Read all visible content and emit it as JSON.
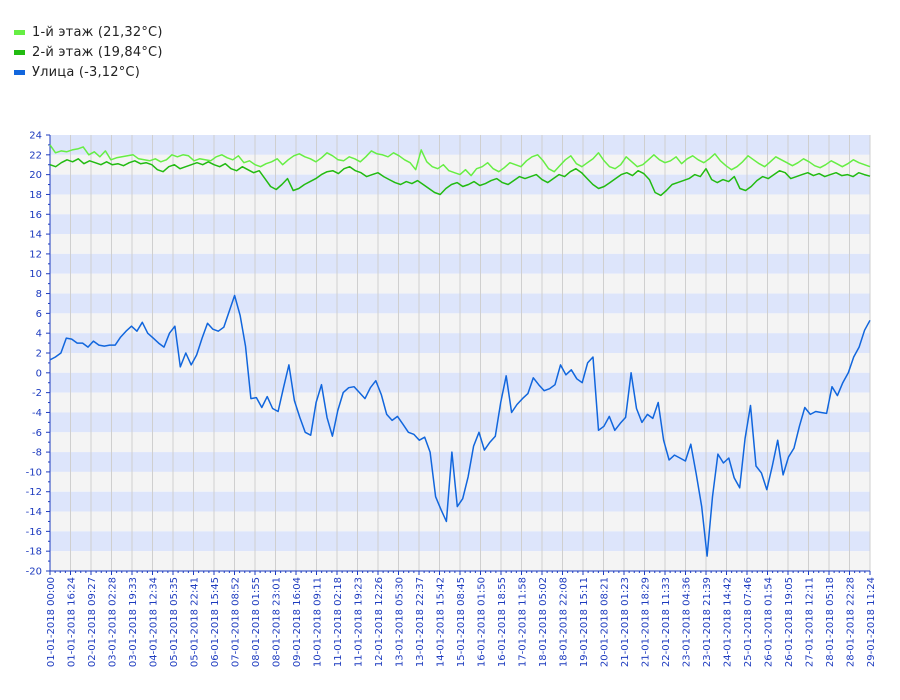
{
  "legend": [
    {
      "label": "1-й этаж (21,32°C)",
      "color": "#66ee44"
    },
    {
      "label": "2-й этаж (19,84°C)",
      "color": "#22bb11"
    },
    {
      "label": "Улица (-3,12°C)",
      "color": "#1166dd"
    }
  ],
  "chart_data": {
    "type": "line",
    "title": "",
    "xlabel": "",
    "ylabel": "",
    "ylim": [
      -20,
      24
    ],
    "yticks": [
      24,
      22,
      20,
      18,
      16,
      14,
      12,
      10,
      8,
      6,
      4,
      2,
      0,
      -2,
      -4,
      -6,
      -8,
      -10,
      -12,
      -14,
      -16,
      -18,
      -20
    ],
    "x_tick_labels": [
      "01-01-2018 00:00",
      "01-01-2018 16:24",
      "02-01-2018 09:27",
      "03-01-2018 02:28",
      "03-01-2018 19:33",
      "04-01-2018 12:34",
      "05-01-2018 05:35",
      "05-01-2018 22:41",
      "06-01-2018 15:45",
      "07-01-2018 08:52",
      "08-01-2018 01:55",
      "08-01-2018 23:01",
      "09-01-2018 16:04",
      "10-01-2018 09:11",
      "11-01-2018 02:18",
      "11-01-2018 19:23",
      "12-01-2018 12:26",
      "13-01-2018 05:30",
      "13-01-2018 22:37",
      "14-01-2018 15:42",
      "15-01-2018 08:45",
      "16-01-2018 01:50",
      "16-01-2018 18:55",
      "17-01-2018 11:58",
      "18-01-2018 05:02",
      "18-01-2018 22:08",
      "19-01-2018 15:11",
      "20-01-2018 08:21",
      "21-01-2018 01:23",
      "21-01-2018 18:29",
      "22-01-2018 11:33",
      "23-01-2018 04:36",
      "23-01-2018 21:39",
      "24-01-2018 14:42",
      "25-01-2018 07:46",
      "26-01-2018 01:54",
      "26-01-2018 19:05",
      "27-01-2018 12:11",
      "28-01-2018 05:18",
      "28-01-2018 22:28",
      "29-01-2018 11:24"
    ],
    "grid": true,
    "series": [
      {
        "name": "1-й этаж (21,32°C)",
        "color": "#66ee44",
        "values": [
          23.0,
          22.2,
          22.4,
          22.3,
          22.5,
          22.6,
          22.8,
          22.0,
          22.3,
          21.8,
          22.4,
          21.5,
          21.7,
          21.8,
          21.9,
          22.0,
          21.6,
          21.5,
          21.4,
          21.6,
          21.3,
          21.5,
          22.0,
          21.8,
          22.0,
          21.9,
          21.4,
          21.6,
          21.5,
          21.4,
          21.8,
          22.0,
          21.7,
          21.5,
          21.9,
          21.2,
          21.4,
          21.0,
          20.8,
          21.1,
          21.3,
          21.6,
          21.0,
          21.5,
          21.9,
          22.1,
          21.8,
          21.6,
          21.3,
          21.7,
          22.2,
          21.9,
          21.5,
          21.4,
          21.8,
          21.6,
          21.3,
          21.8,
          22.4,
          22.1,
          22.0,
          21.8,
          22.2,
          21.9,
          21.5,
          21.2,
          20.5,
          22.5,
          21.3,
          20.8,
          20.6,
          21.0,
          20.4,
          20.2,
          20.0,
          20.5,
          19.9,
          20.6,
          20.8,
          21.2,
          20.6,
          20.3,
          20.7,
          21.2,
          21.0,
          20.8,
          21.4,
          21.8,
          22.0,
          21.4,
          20.6,
          20.3,
          20.9,
          21.5,
          21.9,
          21.1,
          20.8,
          21.2,
          21.6,
          22.2,
          21.4,
          20.8,
          20.6,
          21.0,
          21.8,
          21.3,
          20.8,
          21.0,
          21.5,
          22.0,
          21.5,
          21.2,
          21.4,
          21.8,
          21.1,
          21.6,
          21.9,
          21.5,
          21.2,
          21.6,
          22.1,
          21.4,
          20.9,
          20.5,
          20.8,
          21.3,
          21.9,
          21.5,
          21.1,
          20.8,
          21.3,
          21.8,
          21.5,
          21.2,
          20.9,
          21.2,
          21.6,
          21.3,
          20.9,
          20.7,
          21.0,
          21.4,
          21.1,
          20.8,
          21.1,
          21.5,
          21.2,
          21.0,
          20.8
        ]
      },
      {
        "name": "2-й этаж (19,84°C)",
        "color": "#22bb11",
        "values": [
          21.0,
          20.8,
          21.2,
          21.5,
          21.3,
          21.6,
          21.1,
          21.4,
          21.2,
          21.0,
          21.3,
          21.0,
          21.1,
          20.9,
          21.2,
          21.4,
          21.1,
          21.2,
          21.0,
          20.5,
          20.3,
          20.8,
          21.0,
          20.6,
          20.8,
          21.0,
          21.2,
          21.0,
          21.3,
          21.0,
          20.8,
          21.1,
          20.6,
          20.4,
          20.8,
          20.5,
          20.2,
          20.4,
          19.6,
          18.8,
          18.5,
          19.0,
          19.6,
          18.4,
          18.6,
          19.0,
          19.3,
          19.6,
          20.0,
          20.3,
          20.4,
          20.1,
          20.6,
          20.8,
          20.4,
          20.2,
          19.8,
          20.0,
          20.2,
          19.8,
          19.5,
          19.2,
          19.0,
          19.3,
          19.1,
          19.4,
          19.0,
          18.6,
          18.2,
          18.0,
          18.6,
          19.0,
          19.2,
          18.8,
          19.0,
          19.3,
          18.9,
          19.1,
          19.4,
          19.6,
          19.2,
          19.0,
          19.4,
          19.8,
          19.6,
          19.8,
          20.0,
          19.5,
          19.2,
          19.6,
          20.0,
          19.8,
          20.3,
          20.6,
          20.2,
          19.6,
          19.0,
          18.6,
          18.8,
          19.2,
          19.6,
          20.0,
          20.2,
          19.9,
          20.4,
          20.1,
          19.5,
          18.2,
          17.9,
          18.4,
          19.0,
          19.2,
          19.4,
          19.6,
          20.0,
          19.8,
          20.6,
          19.5,
          19.2,
          19.5,
          19.3,
          19.8,
          18.6,
          18.4,
          18.8,
          19.4,
          19.8,
          19.6,
          20.0,
          20.4,
          20.2,
          19.6,
          19.8,
          20.0,
          20.2,
          19.9,
          20.1,
          19.8,
          20.0,
          20.2,
          19.9,
          20.0,
          19.8,
          20.2,
          20.0,
          19.84
        ]
      },
      {
        "name": "Улица (-3,12°C)",
        "color": "#1166dd",
        "values": [
          1.3,
          1.6,
          2.0,
          3.5,
          3.4,
          3.0,
          3.0,
          2.6,
          3.2,
          2.8,
          2.7,
          2.8,
          2.8,
          3.6,
          4.2,
          4.7,
          4.2,
          5.1,
          4.0,
          3.5,
          3.0,
          2.6,
          4.0,
          4.7,
          0.6,
          2.0,
          0.8,
          1.8,
          3.5,
          5.0,
          4.4,
          4.2,
          4.6,
          6.2,
          7.8,
          5.8,
          2.7,
          -2.6,
          -2.5,
          -3.5,
          -2.4,
          -3.6,
          -3.9,
          -1.5,
          0.8,
          -2.8,
          -4.5,
          -6.0,
          -6.3,
          -3.0,
          -1.2,
          -4.5,
          -6.4,
          -3.8,
          -2.0,
          -1.5,
          -1.4,
          -2.0,
          -2.6,
          -1.5,
          -0.8,
          -2.2,
          -4.2,
          -4.8,
          -4.4,
          -5.2,
          -6.0,
          -6.2,
          -6.8,
          -6.5,
          -8.0,
          -12.5,
          -13.8,
          -15.0,
          -8.0,
          -13.5,
          -12.7,
          -10.5,
          -7.4,
          -6.0,
          -7.8,
          -7.0,
          -6.4,
          -3.0,
          -0.3,
          -4.0,
          -3.2,
          -2.6,
          -2.1,
          -0.5,
          -1.2,
          -1.8,
          -1.6,
          -1.2,
          0.8,
          -0.2,
          0.3,
          -0.6,
          -1.0,
          1.0,
          1.6,
          -5.8,
          -5.4,
          -4.4,
          -5.8,
          -5.1,
          -4.5,
          0.0,
          -3.6,
          -5.0,
          -4.2,
          -4.6,
          -3.0,
          -6.8,
          -8.8,
          -8.3,
          -8.6,
          -8.9,
          -7.2,
          -10.2,
          -13.5,
          -18.5,
          -12.5,
          -8.2,
          -9.1,
          -8.6,
          -10.6,
          -11.6,
          -6.6,
          -3.3,
          -9.4,
          -10.1,
          -11.8,
          -9.4,
          -6.8,
          -10.3,
          -8.5,
          -7.6,
          -5.4,
          -3.5,
          -4.2,
          -3.9,
          -4.0,
          -4.1,
          -1.4,
          -2.3,
          -1.0,
          0.0,
          1.6,
          2.6,
          4.3,
          5.3
        ]
      }
    ]
  }
}
